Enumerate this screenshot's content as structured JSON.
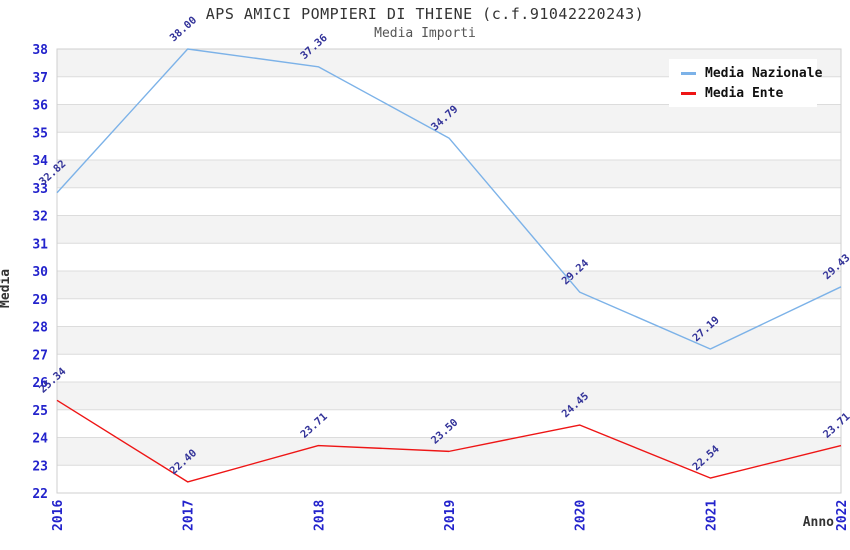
{
  "chart_data": {
    "type": "line",
    "title": "APS AMICI POMPIERI DI THIENE (c.f.91042220243)",
    "subtitle": "Media Importi",
    "xlabel": "Anno",
    "ylabel": "Media",
    "categories": [
      "2016",
      "2017",
      "2018",
      "2019",
      "2020",
      "2021",
      "2022"
    ],
    "series": [
      {
        "name": "Media Nazionale",
        "color": "#7cb2e8",
        "values": [
          32.82,
          38.0,
          37.36,
          34.79,
          29.24,
          27.19,
          29.43
        ]
      },
      {
        "name": "Media Ente",
        "color": "#ee1515",
        "values": [
          25.34,
          22.4,
          23.71,
          23.5,
          24.45,
          22.54,
          23.71
        ]
      }
    ],
    "ylim": [
      22,
      38
    ],
    "ytick_step": 1,
    "grid": "horizontal gridlines with alternating gray bands",
    "legend_position": "top-right",
    "data_labels": "two decimals, rotated",
    "colors": {
      "tick_label": "#2323cc",
      "data_label": "#333399",
      "band": "#f3f3f3",
      "gridline": "#dcdcdc",
      "border": "#cfcfcf",
      "title": "#333333",
      "subtitle": "#555555"
    }
  }
}
